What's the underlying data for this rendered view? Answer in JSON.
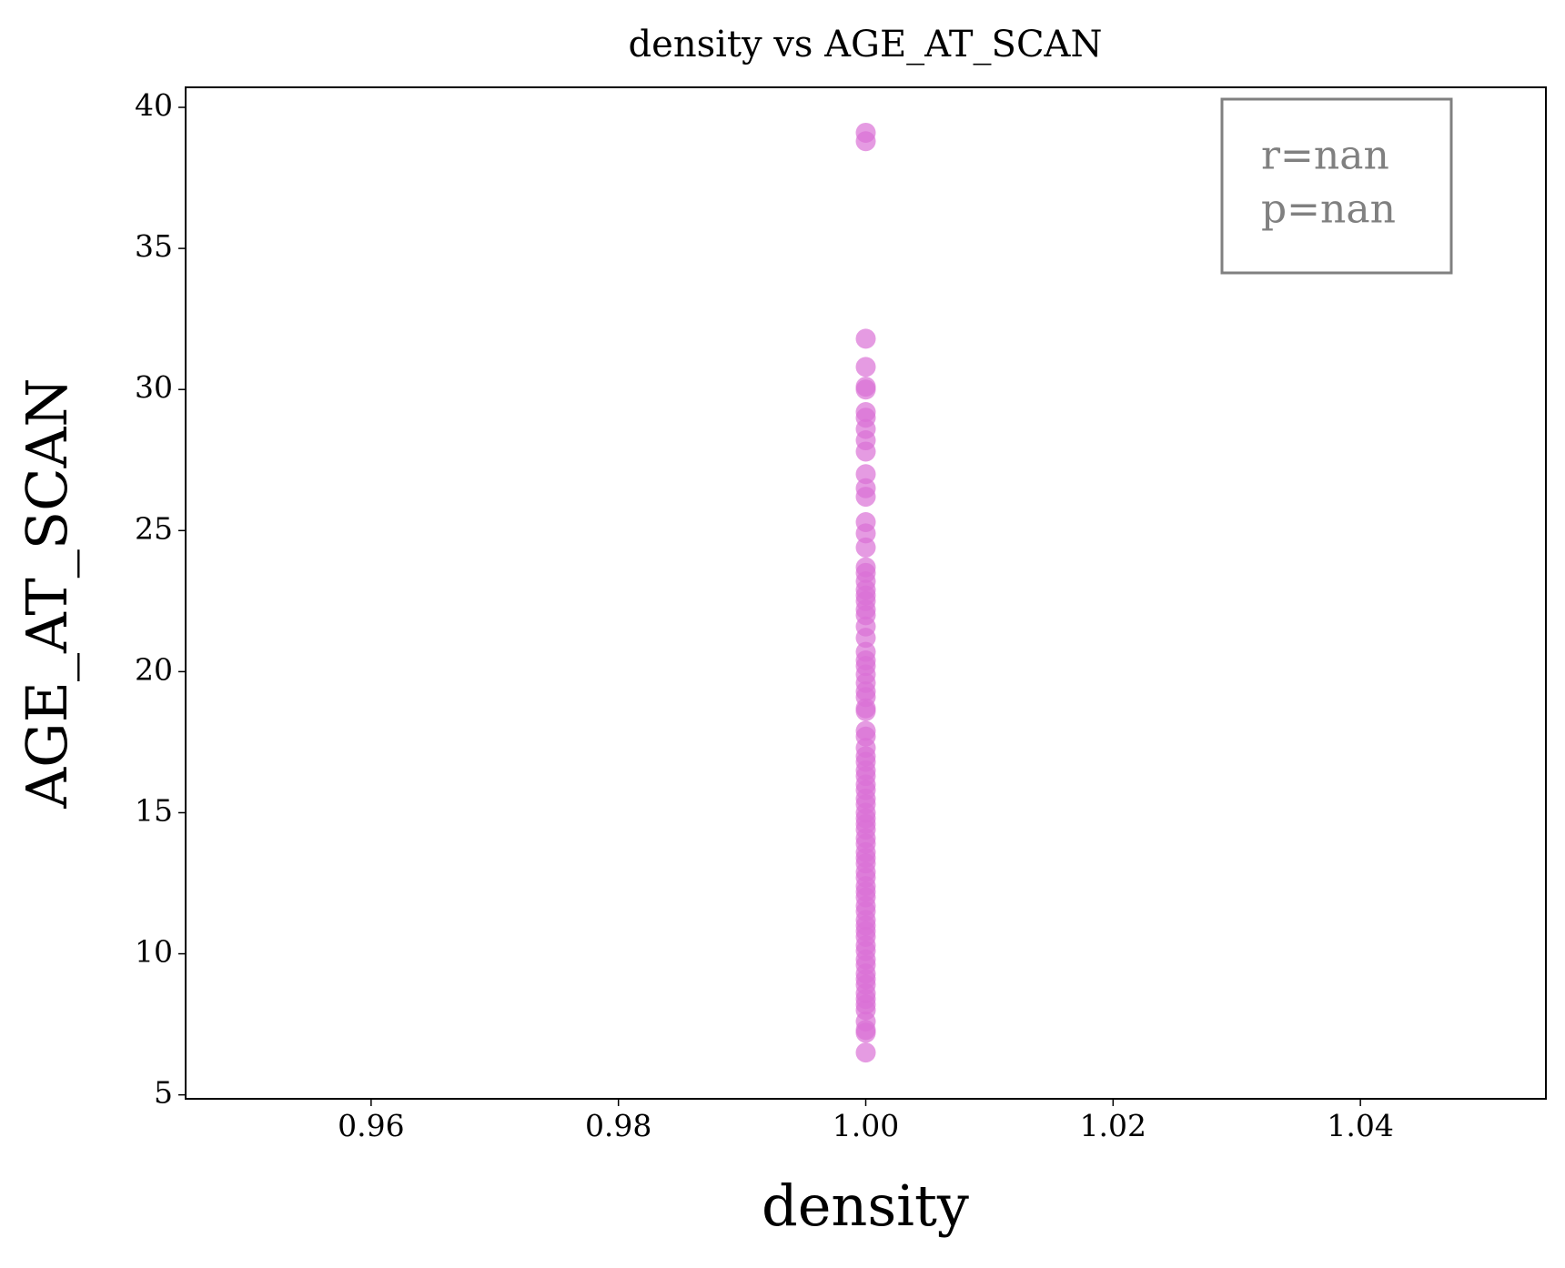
{
  "chart_data": {
    "type": "scatter",
    "title": "density vs AGE_AT_SCAN",
    "x_label": "density",
    "y_label": "AGE_AT_SCAN",
    "color": "#da70d6",
    "annotation": [
      "r=nan",
      "p=nan"
    ],
    "x": [
      1,
      1,
      1,
      1,
      1,
      1,
      1,
      1,
      1,
      1,
      1,
      1,
      1,
      1,
      1,
      1,
      1,
      1,
      1,
      1,
      1,
      1,
      1,
      1,
      1,
      1,
      1,
      1,
      1,
      1,
      1,
      1,
      1,
      1,
      1,
      1,
      1,
      1,
      1,
      1,
      1,
      1,
      1,
      1,
      1,
      1,
      1,
      1,
      1,
      1,
      1,
      1,
      1,
      1,
      1,
      1,
      1,
      1,
      1,
      1,
      1,
      1,
      1,
      1,
      1,
      1,
      1,
      1,
      1,
      1,
      1,
      1,
      1,
      1,
      1,
      1,
      1,
      1,
      1,
      1,
      1,
      1
    ],
    "y": [
      39.1,
      38.8,
      31.8,
      30.8,
      30.1,
      30.0,
      29.2,
      29.0,
      28.6,
      28.2,
      27.8,
      27.0,
      26.5,
      26.2,
      25.3,
      24.9,
      24.4,
      23.7,
      23.5,
      23.2,
      22.9,
      22.7,
      22.5,
      22.2,
      22.0,
      21.6,
      21.2,
      20.7,
      20.4,
      20.2,
      19.9,
      19.6,
      19.3,
      19.1,
      18.7,
      18.6,
      17.9,
      17.7,
      17.3,
      17.0,
      16.8,
      16.5,
      16.3,
      16.0,
      15.8,
      15.5,
      15.3,
      15.0,
      14.8,
      14.6,
      14.4,
      14.1,
      13.9,
      13.6,
      13.4,
      13.2,
      12.9,
      12.7,
      12.4,
      12.2,
      12.0,
      11.7,
      11.5,
      11.2,
      11.0,
      10.8,
      10.6,
      10.3,
      10.1,
      9.8,
      9.6,
      9.3,
      9.1,
      8.9,
      8.6,
      8.4,
      8.2,
      8.0,
      7.6,
      7.3,
      7.2,
      6.5
    ],
    "xlim": [
      0.945,
      1.055
    ],
    "ylim": [
      4.86,
      40.71
    ],
    "xticks": [
      0.96,
      0.98,
      {
        "value": 1,
        "label": "1.00"
      },
      1.02,
      1.04
    ],
    "yticks": [
      5,
      10,
      15,
      20,
      25,
      30,
      35,
      40
    ]
  }
}
